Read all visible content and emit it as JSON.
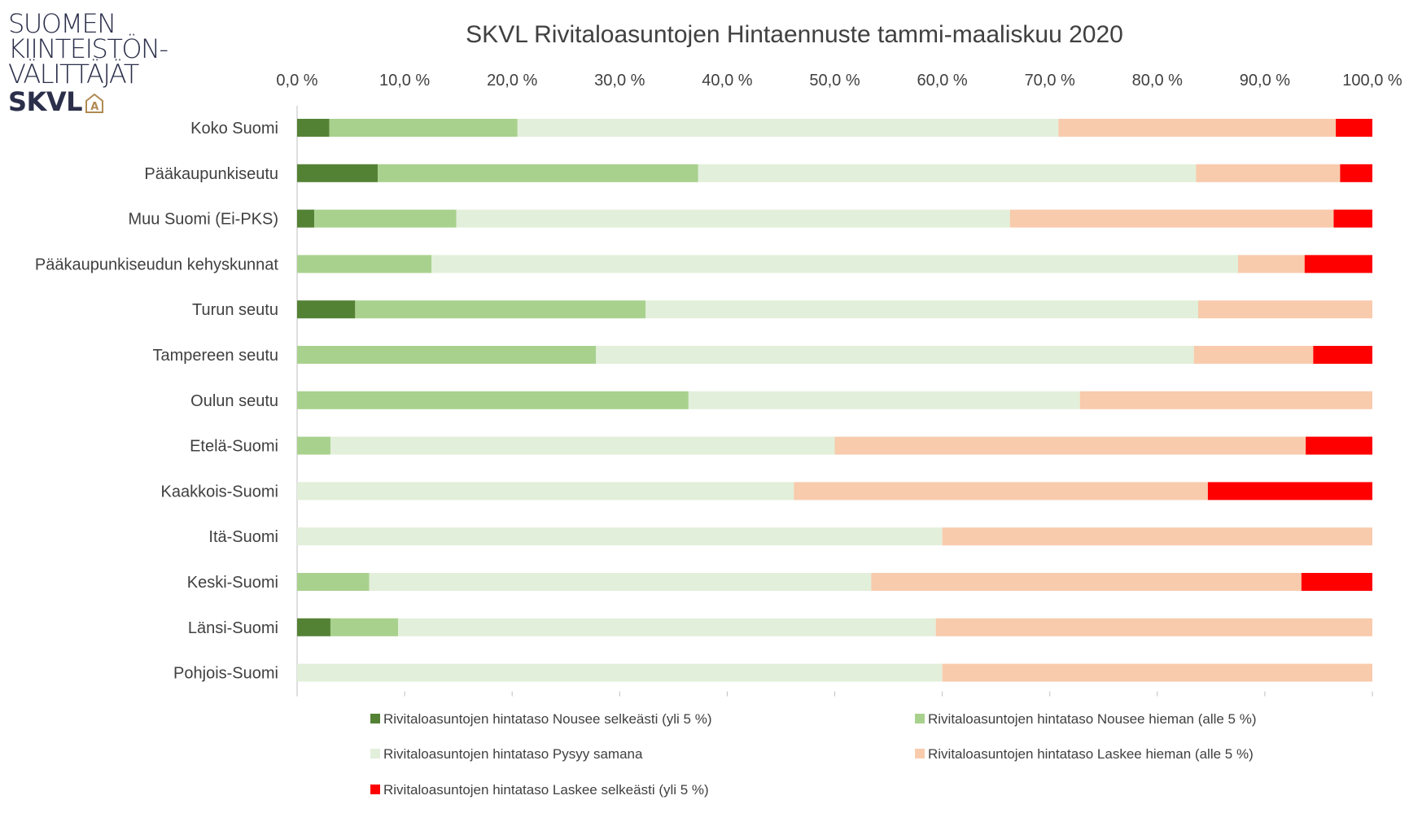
{
  "logo": {
    "line1": "SUOMEN",
    "line2": "KIINTEISTÖN-",
    "line3": "VÄLITTÄJÄT",
    "brand": "SKVL",
    "badge_letter": "A",
    "colors": {
      "text": "#2b2f4a",
      "accent": "#b08a52"
    }
  },
  "chart_data": {
    "type": "bar",
    "orientation": "horizontal",
    "stacked": true,
    "title": "SKVL Rivitaloasuntojen Hintaennuste tammi-maaliskuu 2020",
    "xlim": [
      0,
      100
    ],
    "x_ticks": [
      0,
      10,
      20,
      30,
      40,
      50,
      60,
      70,
      80,
      90,
      100
    ],
    "x_tick_labels": [
      "0,0 %",
      "10,0 %",
      "20,0 %",
      "30,0 %",
      "40,0 %",
      "50,0 %",
      "60,0 %",
      "70,0 %",
      "80,0 %",
      "90,0 %",
      "100,0 %"
    ],
    "x_axis_position": "top",
    "grid": false,
    "legend_position": "bottom",
    "categories": [
      "Koko Suomi",
      "Pääkaupunkiseutu",
      "Muu Suomi (Ei-PKS)",
      "Pääkaupunkiseudun kehyskunnat",
      "Turun seutu",
      "Tampereen seutu",
      "Oulun seutu",
      "Etelä-Suomi",
      "Kaakkois-Suomi",
      "Itä-Suomi",
      "Keski-Suomi",
      "Länsi-Suomi",
      "Pohjois-Suomi"
    ],
    "series": [
      {
        "name": "Rivitaloasuntojen hintataso Nousee selkeästi (yli 5 %)",
        "color": "#548235",
        "values": [
          3.0,
          7.5,
          1.6,
          0,
          5.4,
          0,
          0,
          0,
          0,
          0,
          0,
          3.1,
          0
        ]
      },
      {
        "name": "Rivitaloasuntojen hintataso Nousee hieman (alle 5 %)",
        "color": "#a9d18e",
        "values": [
          17.5,
          29.8,
          13.2,
          12.5,
          27.0,
          27.8,
          36.4,
          3.1,
          0,
          0,
          6.7,
          6.3,
          0
        ]
      },
      {
        "name": "Rivitaloasuntojen hintataso Pysyy samana",
        "color": "#e2efda",
        "values": [
          50.3,
          46.3,
          51.5,
          75.0,
          51.4,
          55.6,
          36.4,
          46.9,
          46.2,
          60.0,
          46.7,
          50.0,
          60.0
        ]
      },
      {
        "name": "Rivitaloasuntojen hintataso Laskee hieman (alle 5 %)",
        "color": "#f8cbad",
        "values": [
          25.8,
          13.4,
          30.1,
          6.2,
          16.2,
          11.1,
          27.2,
          43.8,
          38.5,
          40.0,
          40.0,
          40.6,
          40.0
        ]
      },
      {
        "name": "Rivitaloasuntojen hintataso Laskee selkeästi (yli 5 %)",
        "color": "#ff0000",
        "values": [
          3.4,
          3.0,
          3.6,
          6.3,
          0,
          5.5,
          0,
          6.2,
          15.3,
          0,
          6.6,
          0,
          0
        ]
      }
    ]
  }
}
